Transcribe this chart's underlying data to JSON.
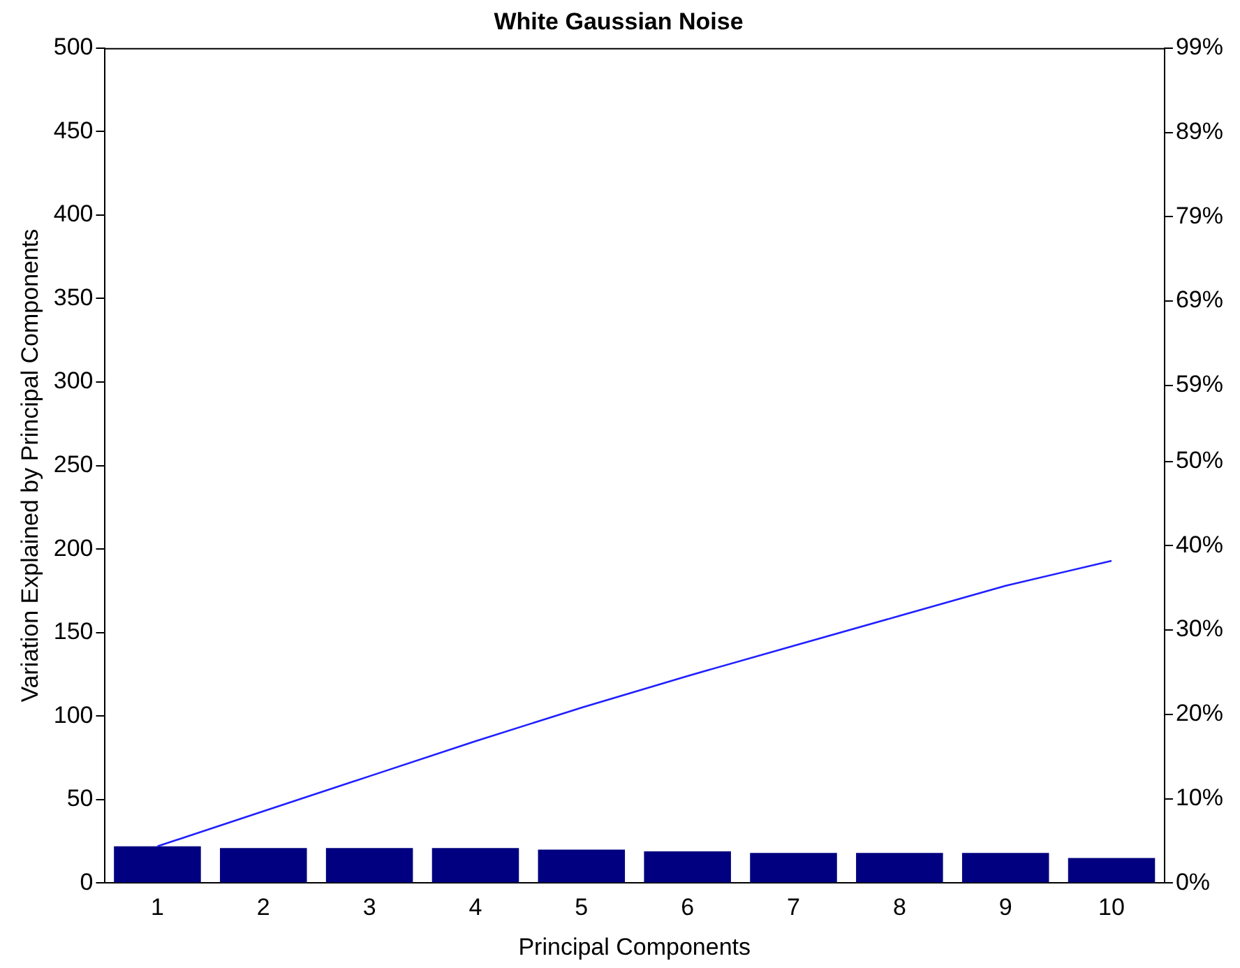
{
  "chart_data": {
    "type": "bar",
    "title": "White Gaussian Noise",
    "xlabel": "Principal Components",
    "ylabel": "Variation Explained by Principal Components",
    "categories": [
      "1",
      "2",
      "3",
      "4",
      "5",
      "6",
      "7",
      "8",
      "9",
      "10"
    ],
    "series": [
      {
        "color": "#000080",
        "values": [
          22,
          21,
          21,
          21,
          20,
          19,
          18,
          18,
          18,
          15
        ]
      },
      {
        "type": "line",
        "color": "#1f1fff",
        "values": [
          22,
          43,
          64,
          85,
          105,
          124,
          142,
          160,
          178,
          193
        ]
      }
    ],
    "ylim": [
      0,
      500
    ],
    "yticks": [
      0,
      50,
      100,
      150,
      200,
      250,
      300,
      350,
      400,
      450,
      500
    ],
    "y2lim": [
      0,
      99
    ],
    "y2ticks": [
      {
        "value": 0,
        "label": "0%"
      },
      {
        "value": 10,
        "label": "10%"
      },
      {
        "value": 20,
        "label": "20%"
      },
      {
        "value": 30,
        "label": "30%"
      },
      {
        "value": 40,
        "label": "40%"
      },
      {
        "value": 50,
        "label": "50%"
      },
      {
        "value": 59,
        "label": "59%"
      },
      {
        "value": 69,
        "label": "69%"
      },
      {
        "value": 79,
        "label": "79%"
      },
      {
        "value": 89,
        "label": "89%"
      },
      {
        "value": 99,
        "label": "99%"
      }
    ],
    "grid": false,
    "legend": false,
    "marker": "none"
  }
}
